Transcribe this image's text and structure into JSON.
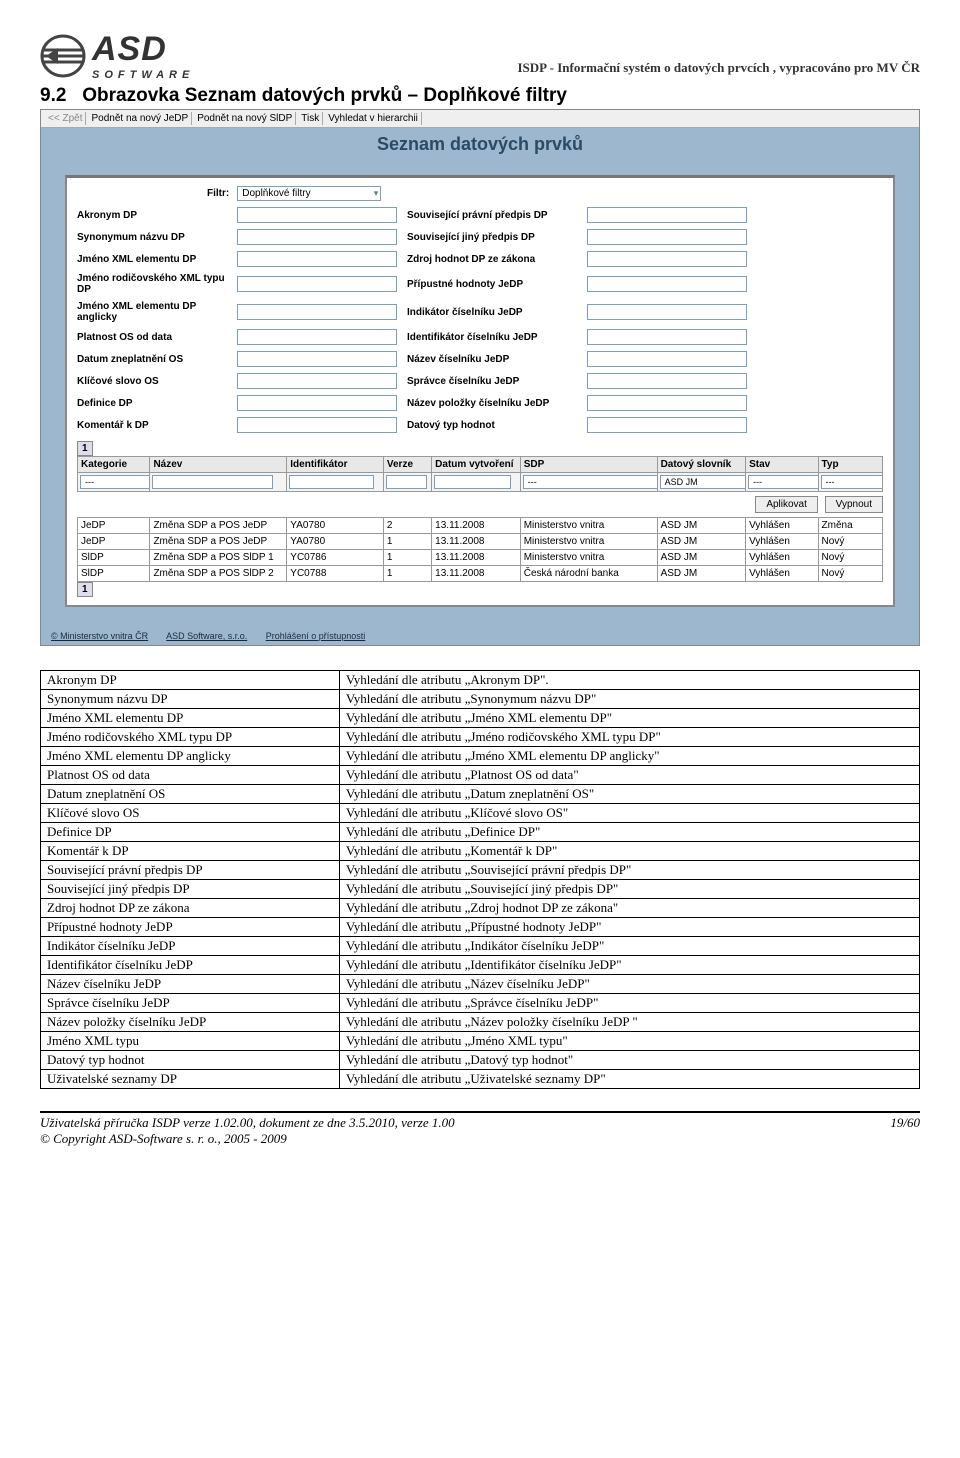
{
  "header": {
    "logo_top": "ASD",
    "logo_bottom": "SOFTWARE",
    "right": "ISDP - Informační systém o datových prvcích , vypracováno pro MV ČR"
  },
  "section_number": "9.2",
  "section_title": "Obrazovka Seznam datových prvků – Doplňkové filtry",
  "app": {
    "menu": {
      "back": "<< Zpět",
      "m1": "Podnět na nový JeDP",
      "m2": "Podnět na nový SlDP",
      "m3": "Tisk",
      "m4": "Vyhledat v hierarchii"
    },
    "page_title": "Seznam datových prvků",
    "filter_label": "Filtr:",
    "filter_value": "Doplňkové filtry",
    "left_labels": [
      "Akronym DP",
      "Synonymum názvu DP",
      "Jméno XML elementu DP",
      "Jméno rodičovského XML typu DP",
      "Jméno XML elementu DP anglicky",
      "Platnost OS od data",
      "Datum zneplatnění OS",
      "Klíčové slovo OS",
      "Definice DP",
      "Komentář k DP"
    ],
    "right_labels": [
      "Související právní předpis DP",
      "Související jiný předpis DP",
      "Zdroj hodnot DP ze zákona",
      "Přípustné hodnoty JeDP",
      "Indikátor číselníku JeDP",
      "Identifikátor číselníku JeDP",
      "Název číselníku JeDP",
      "Správce číselníku JeDP",
      "Název položky číselníku JeDP",
      "Datový typ hodnot"
    ],
    "paginator": "1",
    "grid_headers": [
      "Kategorie",
      "Název",
      "Identifikátor",
      "Verze",
      "Datum vytvoření",
      "SDP",
      "Datový slovník",
      "Stav",
      "Typ"
    ],
    "filter_row": [
      "---",
      "",
      "",
      "",
      "",
      "---",
      "ASD JM",
      "---",
      "---"
    ],
    "btn_apply": "Aplikovat",
    "btn_off": "Vypnout",
    "rows": [
      [
        "JeDP",
        "Změna SDP a POS JeDP",
        "YA0780",
        "2",
        "13.11.2008",
        "Ministerstvo vnitra",
        "ASD JM",
        "Vyhlášen",
        "Změna"
      ],
      [
        "JeDP",
        "Změna SDP a POS JeDP",
        "YA0780",
        "1",
        "13.11.2008",
        "Ministerstvo vnitra",
        "ASD JM",
        "Vyhlášen",
        "Nový"
      ],
      [
        "SlDP",
        "Změna SDP a POS SlDP 1",
        "YC0786",
        "1",
        "13.11.2008",
        "Ministerstvo vnitra",
        "ASD JM",
        "Vyhlášen",
        "Nový"
      ],
      [
        "SlDP",
        "Změna SDP a POS SlDP 2",
        "YC0788",
        "1",
        "13.11.2008",
        "Česká národní banka",
        "ASD JM",
        "Vyhlášen",
        "Nový"
      ]
    ],
    "footer_links": [
      "© Ministerstvo vnitra ČR",
      "ASD Software, s.r.o.",
      "Prohlášení o přístupnosti"
    ]
  },
  "defs": [
    [
      "Akronym DP",
      "Vyhledání dle atributu „Akronym DP\"."
    ],
    [
      "Synonymum názvu DP",
      "Vyhledání dle atributu „Synonymum názvu DP\""
    ],
    [
      "Jméno XML elementu DP",
      "Vyhledání dle atributu „Jméno XML elementu DP\""
    ],
    [
      "Jméno rodičovského XML typu DP",
      "Vyhledání dle atributu „Jméno rodičovského XML typu DP\""
    ],
    [
      "Jméno XML elementu DP anglicky",
      "Vyhledání dle atributu „Jméno XML elementu DP anglicky\""
    ],
    [
      "Platnost OS od data",
      "Vyhledání dle atributu „Platnost OS od data\""
    ],
    [
      "Datum zneplatnění OS",
      "Vyhledání dle atributu „Datum zneplatnění OS\""
    ],
    [
      "Klíčové slovo OS",
      "Vyhledání dle atributu „Klíčové slovo OS\""
    ],
    [
      "Definice DP",
      "Vyhledání dle atributu „Definice DP\""
    ],
    [
      "Komentář k DP",
      "Vyhledání dle atributu „Komentář k DP\""
    ],
    [
      "Související právní předpis DP",
      "Vyhledání dle atributu „Související právní předpis DP\""
    ],
    [
      "Související jiný předpis DP",
      "Vyhledání dle atributu „Související jiný předpis DP\""
    ],
    [
      "Zdroj hodnot DP ze zákona",
      "Vyhledání dle atributu „Zdroj hodnot DP ze zákona\""
    ],
    [
      "Přípustné hodnoty JeDP",
      "Vyhledání dle atributu „Přípustné hodnoty JeDP\""
    ],
    [
      "Indikátor číselníku JeDP",
      "Vyhledání dle atributu „Indikátor číselníku JeDP\""
    ],
    [
      "Identifikátor číselníku JeDP",
      "Vyhledání dle atributu „Identifikátor číselníku JeDP\""
    ],
    [
      "Název číselníku JeDP",
      "Vyhledání dle atributu „Název číselníku JeDP\""
    ],
    [
      "Správce číselníku JeDP",
      "Vyhledání dle atributu „Správce číselníku JeDP\""
    ],
    [
      "Název položky číselníku JeDP",
      "Vyhledání dle atributu „Název položky číselníku JeDP \""
    ],
    [
      "Jméno XML typu",
      "Vyhledání dle atributu „Jméno XML typu\""
    ],
    [
      "Datový typ hodnot",
      "Vyhledání dle atributu „Datový typ hodnot\""
    ],
    [
      "Uživatelské seznamy DP",
      "Vyhledání dle atributu „Uživatelské seznamy DP\""
    ]
  ],
  "footer": {
    "l1": "Uživatelská  příručka ISDP verze 1.02.00, dokument ze dne 3.5.2010, verze 1.00",
    "l2": "© Copyright ASD-Software s. r. o., 2005 - 2009",
    "page": "19/60"
  }
}
